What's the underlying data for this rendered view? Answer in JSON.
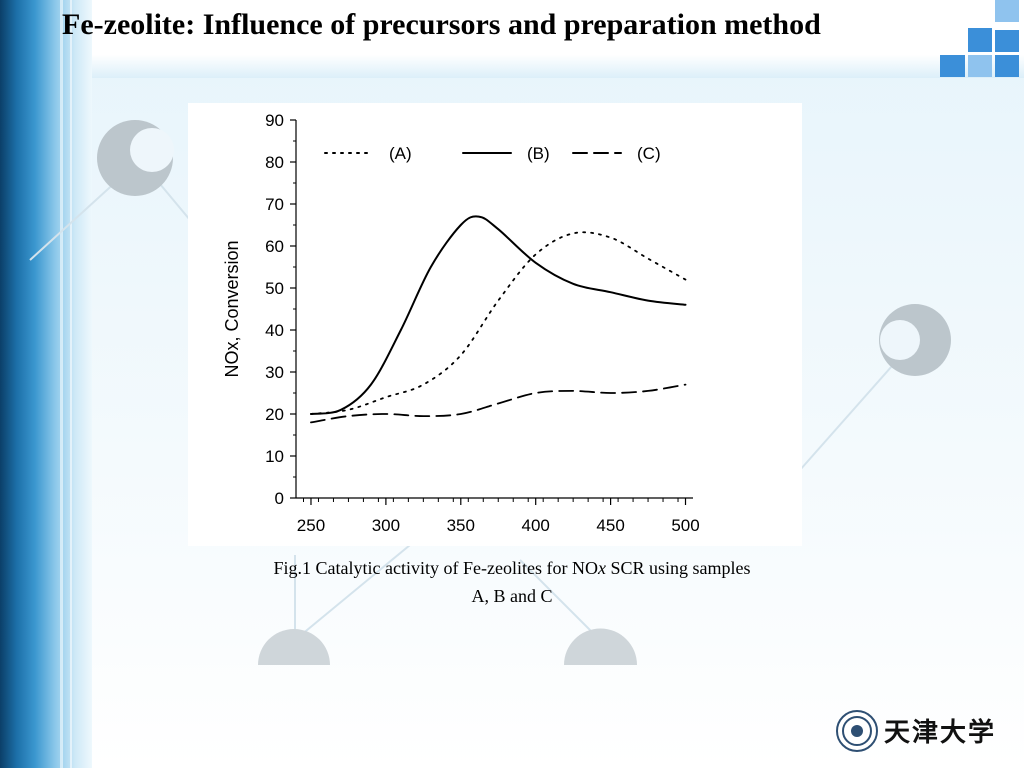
{
  "slide": {
    "title": "Fe-zeolite: Influence of precursors and preparation  method",
    "caption_line1_prefix": "Fig.1 Catalytic activity of Fe-zeolites for NO",
    "caption_line1_italic": "x",
    "caption_line1_suffix": " SCR using samples",
    "caption_line2": "A, B and C",
    "logo_text": "天津大学",
    "colors": {
      "accent": "#3b8fd9",
      "accent_light": "#8fc3ee",
      "bar_dark": "#0b3f68"
    }
  },
  "chart_data": {
    "type": "line",
    "title": "",
    "xlabel": "",
    "ylabel": "NOx, Conversion",
    "xlim": [
      240,
      505
    ],
    "ylim": [
      0,
      90
    ],
    "xticks": [
      250,
      300,
      350,
      400,
      450,
      500
    ],
    "yticks": [
      0,
      10,
      20,
      30,
      40,
      50,
      60,
      70,
      80,
      90
    ],
    "grid": false,
    "legend": "top",
    "series": [
      {
        "name": "(A)",
        "style": "dotted",
        "x": [
          250,
          275,
          300,
          325,
          350,
          375,
          400,
          425,
          450,
          475,
          500
        ],
        "y": [
          20,
          21,
          24,
          27,
          34,
          47,
          58,
          63,
          62,
          57,
          52
        ]
      },
      {
        "name": "(B)",
        "style": "solid",
        "x": [
          250,
          270,
          290,
          310,
          330,
          350,
          362,
          375,
          400,
          425,
          450,
          475,
          500
        ],
        "y": [
          20,
          21,
          27,
          40,
          55,
          65,
          67,
          64,
          56,
          51,
          49,
          47,
          46
        ]
      },
      {
        "name": "(C)",
        "style": "dashed",
        "x": [
          250,
          275,
          300,
          325,
          350,
          375,
          400,
          425,
          450,
          475,
          500
        ],
        "y": [
          18,
          19.5,
          20,
          19.5,
          20,
          22.5,
          25,
          25.5,
          25,
          25.5,
          27
        ]
      }
    ]
  }
}
